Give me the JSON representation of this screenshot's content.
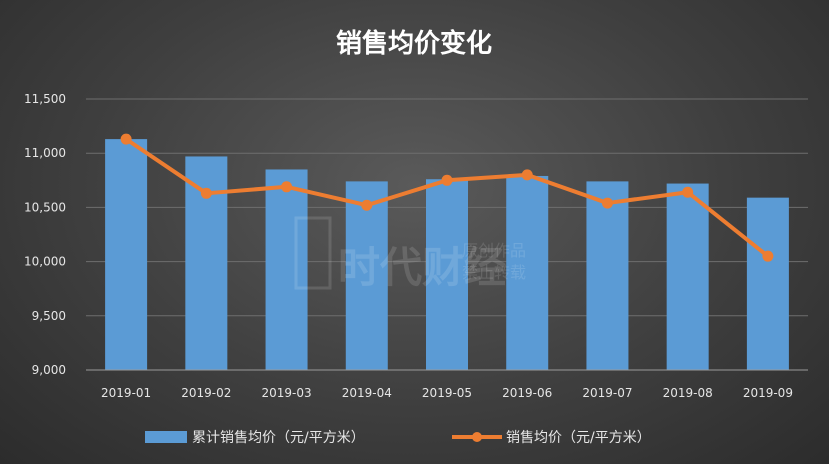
{
  "chart_data": {
    "type": "bar+line",
    "title": "销售均价变化",
    "categories": [
      "2019-01",
      "2019-02",
      "2019-03",
      "2019-04",
      "2019-05",
      "2019-06",
      "2019-07",
      "2019-08",
      "2019-09"
    ],
    "series": [
      {
        "name": "累计销售均价（元/平方米）",
        "type": "bar",
        "color": "#5b9bd5",
        "values": [
          11130,
          10970,
          10850,
          10740,
          10760,
          10790,
          10740,
          10720,
          10590
        ]
      },
      {
        "name": "销售均价（元/平方米）",
        "type": "line",
        "color": "#ed7d31",
        "values": [
          11130,
          10630,
          10690,
          10520,
          10750,
          10800,
          10540,
          10640,
          10050
        ]
      }
    ],
    "ylim": [
      9000,
      11500
    ],
    "yticks": [
      9000,
      9500,
      10000,
      10500,
      11000,
      11500
    ],
    "ytick_labels": [
      "9,000",
      "9,500",
      "10,000",
      "10,500",
      "11,000",
      "11,500"
    ],
    "grid": true,
    "legend": "bottom"
  },
  "watermark": {
    "logo": "时代财经",
    "line1": "原创作品",
    "line2": "禁止转载"
  }
}
